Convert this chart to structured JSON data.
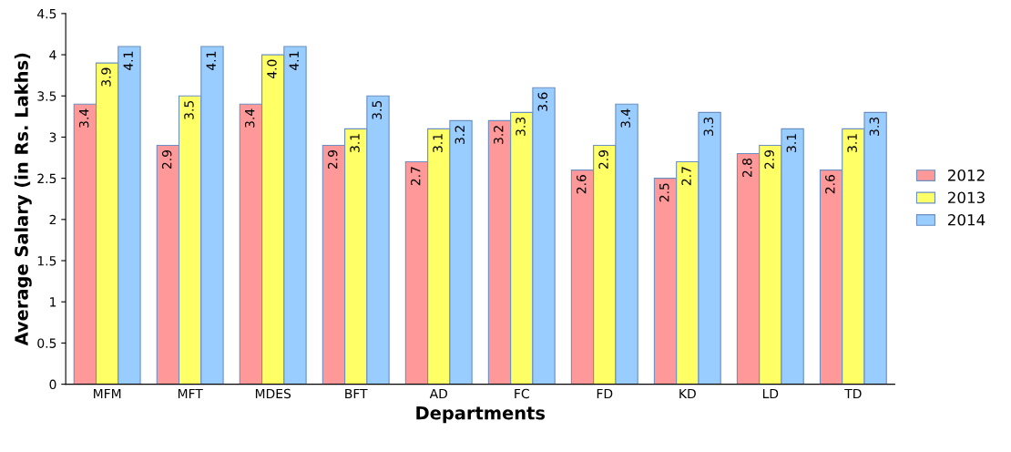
{
  "chart_data": {
    "type": "bar",
    "xlabel": "Departments",
    "ylabel": "Average Salary (in Rs. Lakhs)",
    "categories": [
      "MFM",
      "MFT",
      "MDES",
      "BFT",
      "AD",
      "FC",
      "FD",
      "KD",
      "LD",
      "TD"
    ],
    "series": [
      {
        "name": "2012",
        "color": "#ff9999",
        "values": [
          3.4,
          2.9,
          3.4,
          2.9,
          2.7,
          3.2,
          2.6,
          2.5,
          2.8,
          2.6
        ],
        "value_labels": [
          "3.4",
          "2.9",
          "3.4",
          "2.9",
          "2.7",
          "3.2",
          "2.6",
          "2.5",
          "2.8",
          "2.6"
        ]
      },
      {
        "name": "2013",
        "color": "#ffff66",
        "values": [
          3.9,
          3.5,
          4.0,
          3.1,
          3.1,
          3.3,
          2.9,
          2.7,
          2.9,
          3.1
        ],
        "value_labels": [
          "3.9",
          "3.5",
          "4.0",
          "3.1",
          "3.1",
          "3.3",
          "2.9",
          "2.7",
          "2.9",
          "3.1"
        ]
      },
      {
        "name": "2014",
        "color": "#99ccff",
        "values": [
          4.1,
          4.1,
          4.1,
          3.5,
          3.2,
          3.6,
          3.4,
          3.3,
          3.1,
          3.3
        ],
        "value_labels": [
          "4.1",
          "4.1",
          "4.1",
          "3.5",
          "3.2",
          "3.6",
          "3.4",
          "3.3",
          "3.1",
          "3.3"
        ]
      }
    ],
    "ylim": [
      0,
      4.5
    ],
    "yticks": [
      0,
      0.5,
      1,
      1.5,
      2,
      2.5,
      3,
      3.5,
      4,
      4.5
    ],
    "grid": false,
    "legend": "right"
  }
}
